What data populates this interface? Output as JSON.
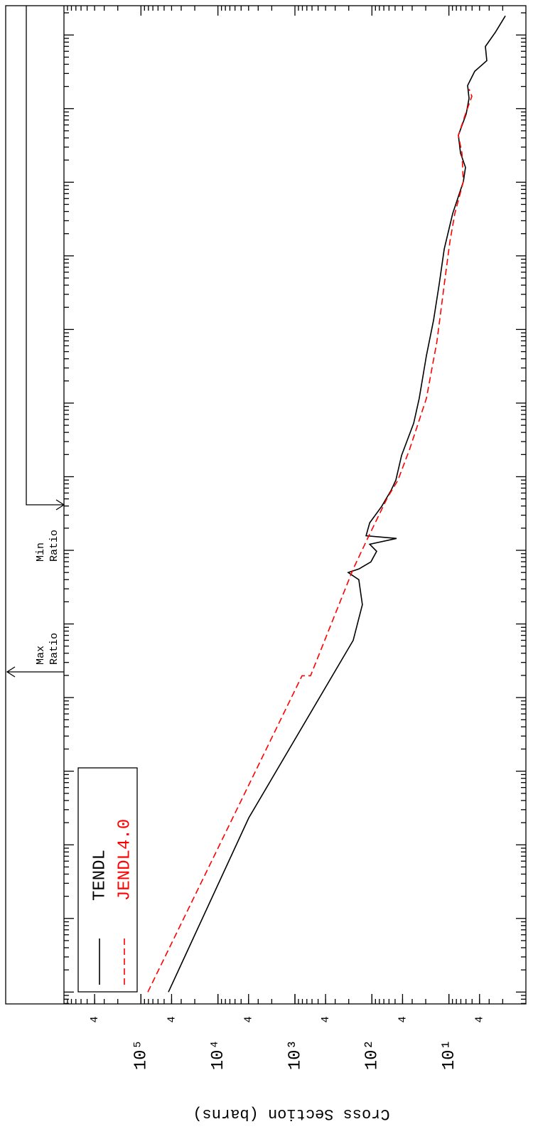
{
  "chart_data": {
    "type": "line",
    "y_label": "Cross Section (barns)",
    "xscale": "log",
    "yscale": "log",
    "xlim": [
      6.9e-06,
      250000000.0
    ],
    "xticks": [
      1e-05,
      0.0001,
      0.001,
      0.01,
      0.1,
      1,
      10,
      100,
      1000,
      10000,
      100000,
      1000000,
      10000000,
      100000000
    ],
    "ylim": [
      1,
      1000000
    ],
    "yticks": [
      4,
      {
        "value": 10,
        "label": "10¹"
      },
      {
        "value": 40,
        "label": "4"
      },
      {
        "value": 100,
        "label": "10²"
      },
      {
        "value": 400,
        "label": "4"
      },
      {
        "value": 1000,
        "label": "10³"
      },
      {
        "value": 4000,
        "label": "4"
      },
      {
        "value": 10000,
        "label": "10⁴"
      },
      {
        "value": 40000,
        "label": "4"
      },
      {
        "value": 100000,
        "label": "10⁵"
      },
      {
        "value": 400000,
        "label": "4"
      }
    ],
    "annotations": [
      {
        "lines": [
          "Max",
          "Ratio"
        ]
      },
      {
        "lines": [
          "Min",
          "Ratio"
        ]
      }
    ],
    "series": [
      {
        "name": "TENDL",
        "color": "#000000",
        "style": "solid",
        "x": [
          1e-05,
          0.00232,
          0.6,
          1.83,
          3.99,
          4.99,
          5.57,
          6.97,
          9.71,
          12.1,
          14.5,
          15.8,
          23.6,
          39.5,
          64.3,
          89.8,
          195,
          532,
          1160,
          4400,
          13400,
          40600,
          124000,
          376000,
          1020000,
          1590000,
          2490000,
          4340000,
          8450000,
          13800000,
          20600000,
          32100000,
          44800000,
          69800000,
          109000000,
          182000000
        ],
        "values": [
          43950,
          3981,
          175,
          133,
          148,
          203,
          148,
          103,
          86.8,
          107,
          47.9,
          119,
          107,
          74.8,
          56.7,
          48.9,
          41.2,
          28.7,
          24.3,
          19.6,
          15.8,
          13.4,
          11.5,
          8.93,
          6.49,
          6.09,
          7.07,
          7.54,
          5.96,
          5.48,
          5.71,
          4.62,
          3.22,
          3.36,
          2.49,
          1.85
        ]
      },
      {
        "name": "JENDL4.0",
        "color": "#ff0000",
        "style": "dashed",
        "x": [
          1e-05,
          0.198,
          0.198,
          5.57,
          13.6,
          51.6,
          89.8,
          244,
          1160,
          6860,
          40600,
          154000,
          376000,
          1020000,
          2490000,
          4340000,
          8450000,
          14700000,
          18400000
        ],
        "values": [
          81500,
          809,
          627,
          175,
          117,
          63.1,
          45.9,
          32.0,
          19.6,
          14.3,
          11.5,
          9.72,
          8.38,
          6.49,
          6.77,
          7.54,
          6.09,
          5.03,
          5.48
        ]
      }
    ]
  }
}
